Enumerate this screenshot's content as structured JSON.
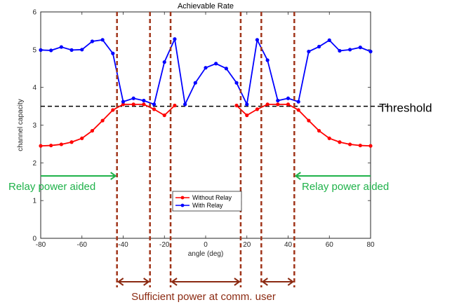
{
  "chart_data": {
    "type": "line",
    "title": "Achievable Rate",
    "xlabel": "angle (deg)",
    "ylabel": "channel capacity",
    "xlim": [
      -80,
      80
    ],
    "ylim": [
      0,
      6
    ],
    "xticks": [
      "-80",
      "-60",
      "-40",
      "-20",
      "0",
      "20",
      "40",
      "60",
      "80"
    ],
    "yticks": [
      "0",
      "1",
      "2",
      "3",
      "4",
      "5",
      "6"
    ],
    "grid": false,
    "legend_position": "bottom-center",
    "x": [
      -80,
      -75,
      -70,
      -65,
      -60,
      -55,
      -50,
      -45,
      -40,
      -35,
      -30,
      -25,
      -20,
      -15,
      -10,
      -5,
      0,
      5,
      10,
      15,
      20,
      25,
      30,
      35,
      40,
      45,
      50,
      55,
      60,
      65,
      70,
      75,
      80
    ],
    "series": [
      {
        "name": "Without Relay",
        "color": "#ff0000",
        "values": [
          2.45,
          2.46,
          2.49,
          2.55,
          2.65,
          2.85,
          3.12,
          3.4,
          3.55,
          3.55,
          3.55,
          3.42,
          3.26,
          3.52,
          null,
          null,
          null,
          null,
          null,
          3.52,
          3.26,
          3.42,
          3.55,
          3.55,
          3.55,
          3.4,
          3.12,
          2.85,
          2.65,
          2.55,
          2.49,
          2.46,
          2.45
        ]
      },
      {
        "name": "With Relay",
        "color": "#0000ff",
        "values": [
          4.99,
          4.98,
          5.07,
          4.99,
          5.0,
          5.22,
          5.26,
          4.9,
          3.62,
          3.71,
          3.65,
          3.55,
          4.67,
          5.28,
          3.55,
          4.12,
          4.52,
          4.63,
          4.5,
          4.12,
          3.55,
          5.26,
          4.72,
          3.65,
          3.71,
          3.62,
          4.95,
          5.08,
          5.25,
          4.97,
          5.0,
          5.06,
          4.95
        ]
      }
    ],
    "threshold": {
      "value": 3.5,
      "label": "Threshold"
    },
    "annotations": {
      "relay_left": "Relay power aided",
      "relay_right": "Relay power aided",
      "sufficient": "Sufficient power at comm. user"
    },
    "relay_regions": [
      [
        -80,
        -43
      ],
      [
        43,
        80
      ]
    ],
    "sufficient_regions": [
      [
        -43,
        -27
      ],
      [
        -17,
        17
      ],
      [
        27,
        43
      ]
    ],
    "colors": {
      "relay_annotation": "#1fb24a",
      "boundary": "#a0351a",
      "sufficient_annotation": "#8b2a12",
      "threshold": "#000000"
    }
  }
}
